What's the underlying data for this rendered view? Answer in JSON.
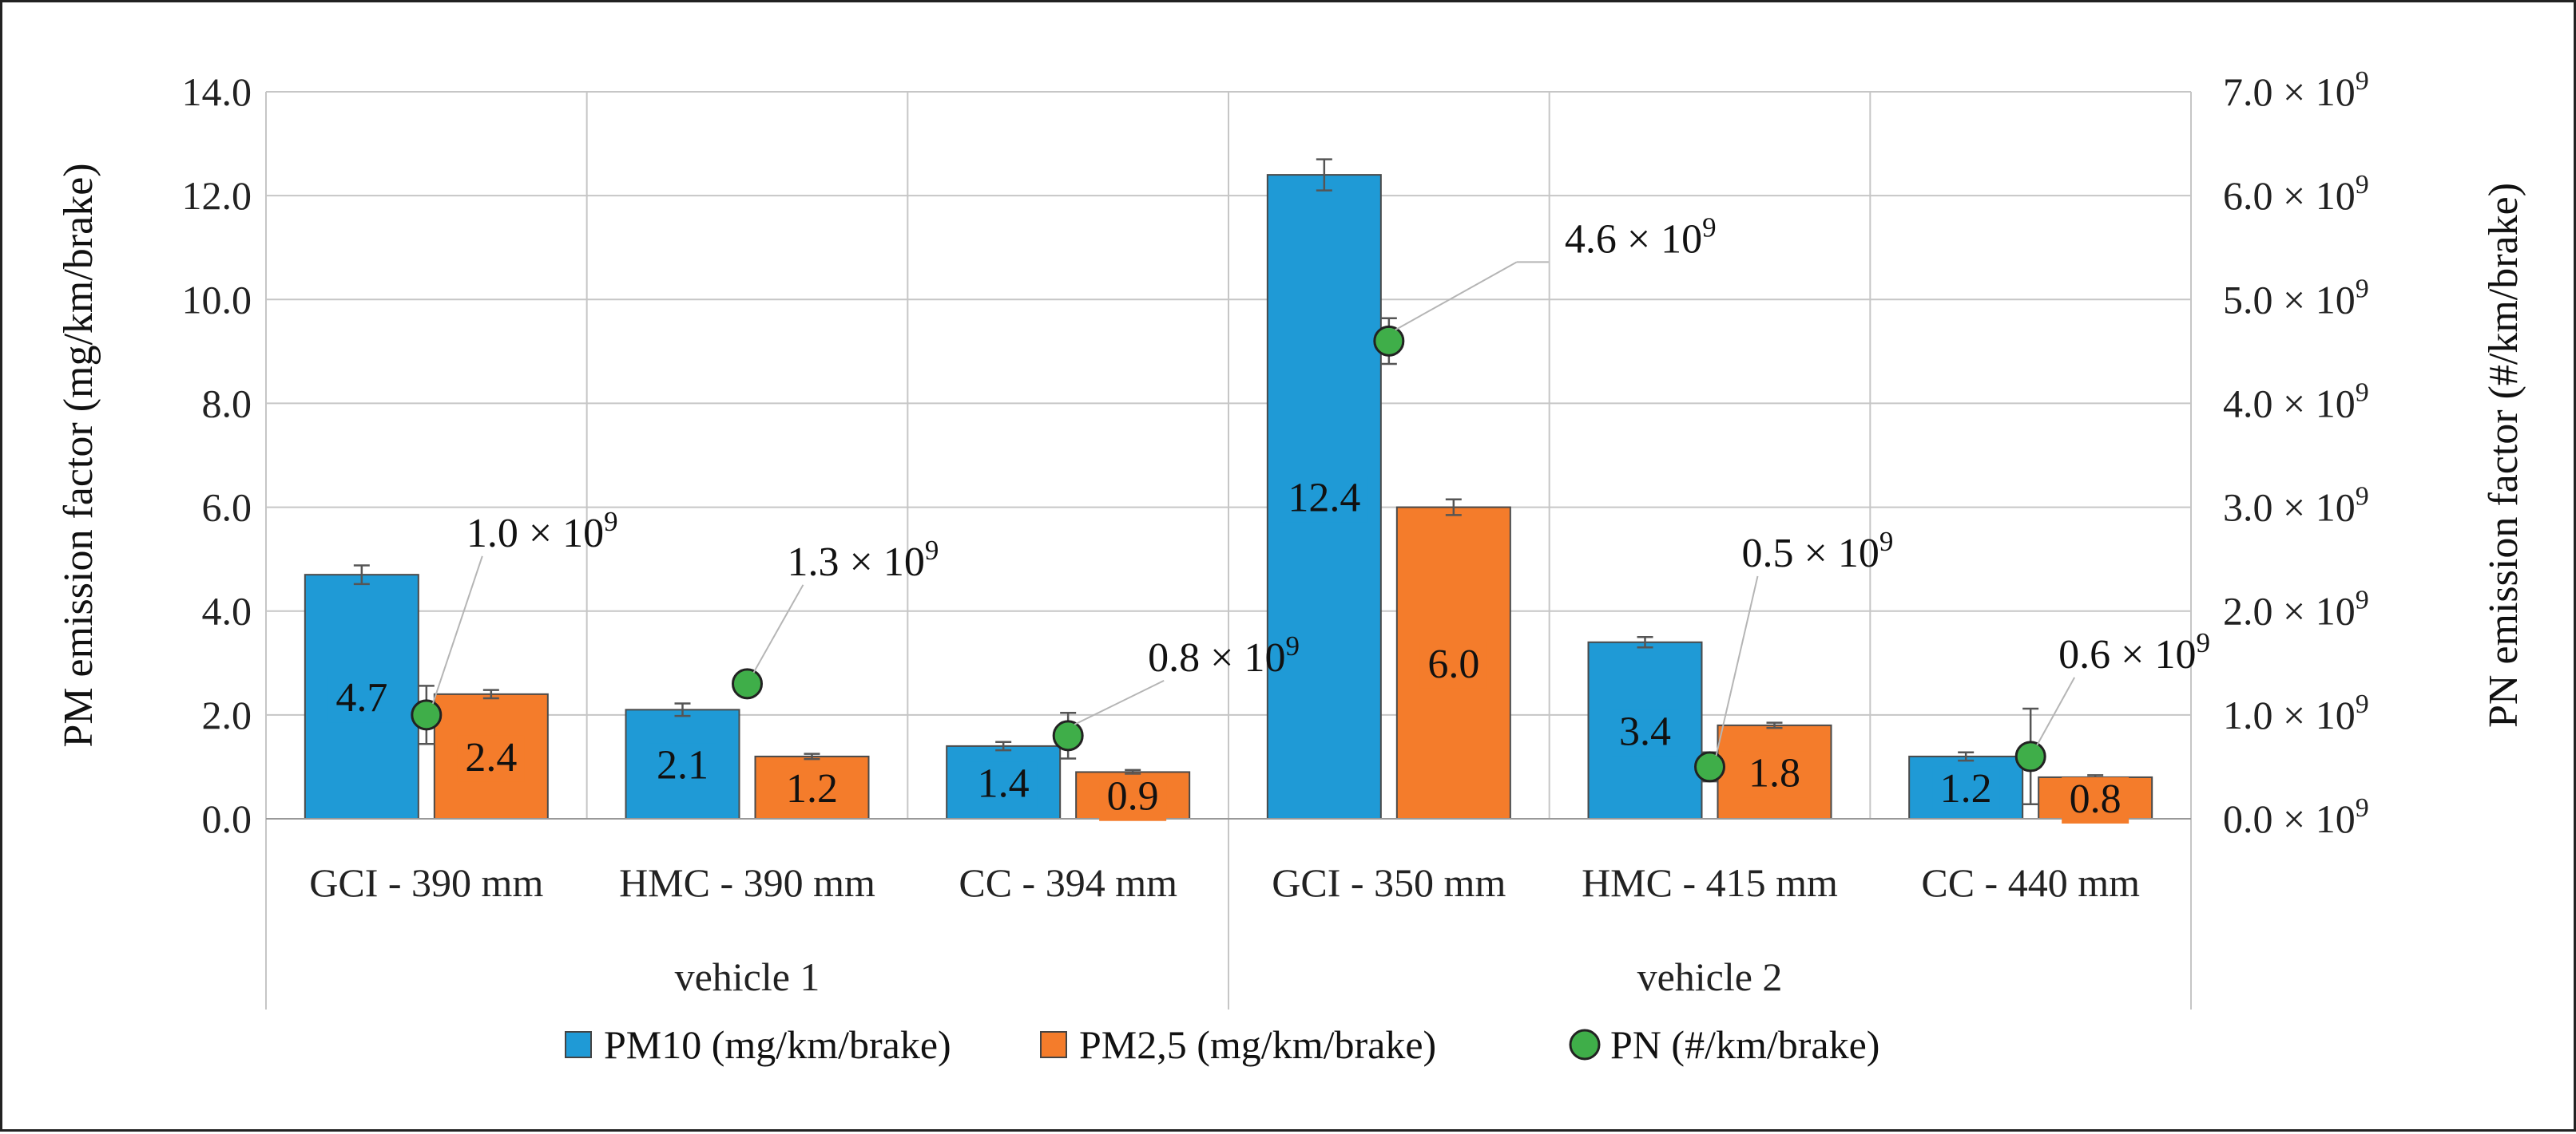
{
  "chart_data": {
    "type": "bar",
    "title": "",
    "ylabel": "PM emission factor (mg/km/brake)",
    "y2label": "PN emission factor (#/km/brake)",
    "ylim": [
      0,
      14
    ],
    "y2lim": [
      0,
      7
    ],
    "yticks": [
      "0.0",
      "2.0",
      "4.0",
      "6.0",
      "8.0",
      "10.0",
      "12.0",
      "14.0"
    ],
    "y2ticks": [
      {
        "mant": "0.0",
        "exp": "9"
      },
      {
        "mant": "1.0",
        "exp": "9"
      },
      {
        "mant": "2.0",
        "exp": "9"
      },
      {
        "mant": "3.0",
        "exp": "9"
      },
      {
        "mant": "4.0",
        "exp": "9"
      },
      {
        "mant": "5.0",
        "exp": "9"
      },
      {
        "mant": "6.0",
        "exp": "9"
      },
      {
        "mant": "7.0",
        "exp": "9"
      }
    ],
    "times_sign": "×",
    "categories": [
      "GCI - 390 mm",
      "HMC - 390 mm",
      "CC - 394 mm",
      "GCI - 350 mm",
      "HMC - 415 mm",
      "CC - 440 mm"
    ],
    "groups": [
      {
        "label": "vehicle 1",
        "count": 3
      },
      {
        "label": "vehicle 2",
        "count": 3
      }
    ],
    "series": [
      {
        "name": "PM10 (mg/km/brake)",
        "color": "#1f9ad6",
        "values": [
          4.7,
          2.1,
          1.4,
          12.4,
          3.4,
          1.2
        ],
        "labels": [
          "4.7",
          "2.1",
          "1.4",
          "12.4",
          "3.4",
          "1.2"
        ],
        "err": [
          0.18,
          0.12,
          0.08,
          0.3,
          0.1,
          0.08
        ]
      },
      {
        "name": "PM2,5 (mg/km/brake)",
        "color": "#f47c2b",
        "values": [
          2.4,
          1.2,
          0.9,
          6.0,
          1.8,
          0.8
        ],
        "labels": [
          "2.4",
          "1.2",
          "0.9",
          "6.0",
          "1.8",
          "0.8"
        ],
        "err": [
          0.08,
          0.05,
          0.04,
          0.15,
          0.05,
          0.04
        ]
      },
      {
        "name": "PN (#/km/brake)",
        "color": "#3fae49",
        "type": "scatter",
        "axis": "right",
        "values": [
          1.0,
          1.3,
          0.8,
          4.6,
          0.5,
          0.6
        ],
        "labels": [
          {
            "mant": "1.0",
            "exp": "9"
          },
          {
            "mant": "1.3",
            "exp": "9"
          },
          {
            "mant": "0.8",
            "exp": "9"
          },
          {
            "mant": "4.6",
            "exp": "9"
          },
          {
            "mant": "0.5",
            "exp": "9"
          },
          {
            "mant": "0.6",
            "exp": "9"
          }
        ],
        "err": [
          0.28,
          0.12,
          0.22,
          0.22,
          0.14,
          0.46
        ]
      }
    ],
    "legend": "bottom",
    "grid": true
  }
}
